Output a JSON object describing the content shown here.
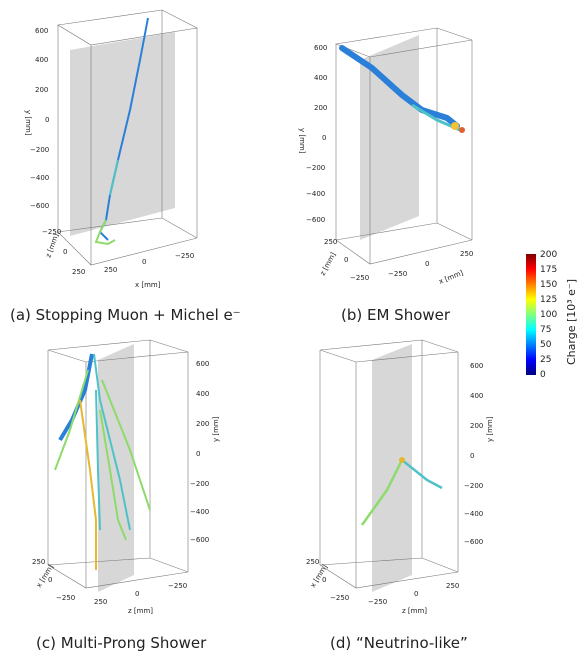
{
  "panels": [
    {
      "caption": "(a) Stopping Muon + Michel e⁻",
      "y_ticks": [
        "600",
        "400",
        "200",
        "0",
        "−200",
        "−400",
        "−600"
      ],
      "z_ticks": [
        "−250",
        "0",
        "250"
      ],
      "x_ticks": [
        "250",
        "0",
        "−250"
      ],
      "y_label": "y [mm]",
      "z_label": "z [mm]",
      "x_label": "x [mm]"
    },
    {
      "caption": "(b) EM Shower",
      "y_ticks": [
        "600",
        "400",
        "200",
        "0",
        "−200",
        "−400",
        "−600"
      ],
      "z_ticks": [
        "250",
        "0",
        "−250"
      ],
      "x_ticks": [
        "−250",
        "0",
        "250"
      ],
      "y_label": "y [mm]",
      "z_label": "z [mm]",
      "x_label": "x [mm]"
    },
    {
      "caption": "(c) Multi-Prong Shower",
      "y_ticks": [
        "600",
        "400",
        "200",
        "0",
        "−200",
        "−400",
        "−600"
      ],
      "z_ticks": [
        "250",
        "0",
        "−250"
      ],
      "x_ticks": [
        "250",
        "0",
        "−250"
      ],
      "y_label": "y [mm]",
      "z_label": "z [mm]",
      "x_label": "x [mm]"
    },
    {
      "caption": "(d) “Neutrino-like”",
      "y_ticks": [
        "600",
        "400",
        "200",
        "0",
        "−200",
        "−400",
        "−600"
      ],
      "z_ticks": [
        "−250",
        "0",
        "250"
      ],
      "x_ticks": [
        "250",
        "0",
        "−250"
      ],
      "y_label": "y [mm]",
      "z_label": "z [mm]",
      "x_label": "x [mm]"
    }
  ],
  "colorbar": {
    "label": "Charge [10³ e⁻]",
    "ticks": [
      "200",
      "175",
      "150",
      "125",
      "100",
      "75",
      "50",
      "25",
      "0"
    ],
    "min": 0,
    "max": 200,
    "colormap": "jet"
  },
  "chart_data": [
    {
      "type": "scatter",
      "title": "",
      "description_from_caption": "Stopping Muon + Michel e⁻",
      "xlabel": "x [mm]",
      "ylabel": "y [mm]",
      "zlabel": "z [mm]",
      "ylim": [
        -600,
        600
      ],
      "xlim": [
        -250,
        250
      ],
      "zlim": [
        -250,
        250
      ]
    },
    {
      "type": "scatter",
      "title": "",
      "description_from_caption": "EM Shower",
      "xlabel": "x [mm]",
      "ylabel": "y [mm]",
      "zlabel": "z [mm]",
      "ylim": [
        -600,
        600
      ],
      "xlim": [
        -250,
        250
      ],
      "zlim": [
        -250,
        250
      ]
    },
    {
      "type": "scatter",
      "title": "",
      "description_from_caption": "Multi-Prong Shower",
      "xlabel": "x [mm]",
      "ylabel": "y [mm]",
      "zlabel": "z [mm]",
      "ylim": [
        -600,
        600
      ],
      "xlim": [
        -250,
        250
      ],
      "zlim": [
        -250,
        250
      ]
    },
    {
      "type": "scatter",
      "title": "",
      "description_from_caption": "Neutrino-like",
      "xlabel": "x [mm]",
      "ylabel": "y [mm]",
      "zlabel": "z [mm]",
      "ylim": [
        -600,
        600
      ],
      "xlim": [
        -250,
        250
      ],
      "zlim": [
        -250,
        250
      ]
    }
  ]
}
